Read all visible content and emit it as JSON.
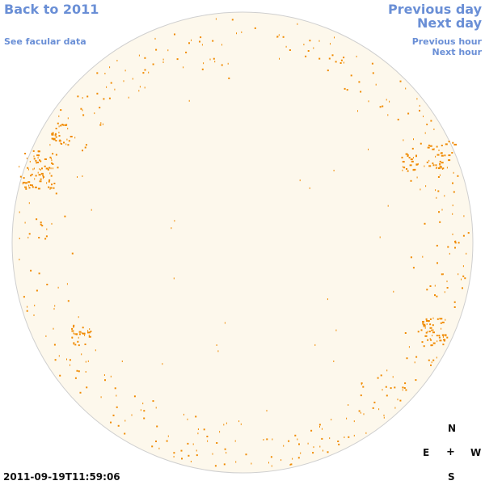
{
  "nav": {
    "back_label": "Back to 2011",
    "facular_label": "See facular data",
    "prev_day_label": "Previous day",
    "next_day_label": "Next day",
    "prev_hour_label": "Previous hour",
    "next_hour_label": "Next hour"
  },
  "compass": {
    "north": "N",
    "east": "E",
    "center": "+",
    "west": "W",
    "south": "S"
  },
  "timestamp": "2011-09-19T11:59:06",
  "colors": {
    "disk_fill": "#fdf8ec",
    "disk_edge": "#cfcfcf",
    "facula": "#f08a00",
    "link": "#6a8fd6"
  }
}
